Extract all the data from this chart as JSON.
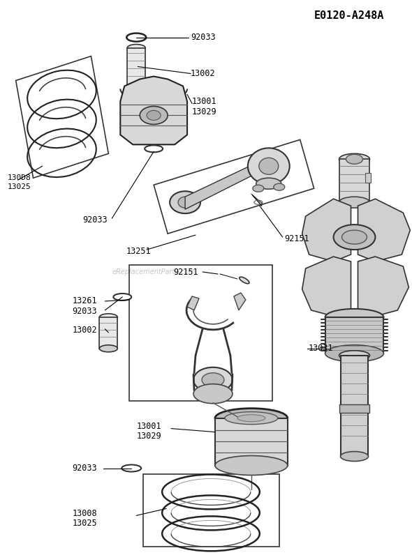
{
  "title": "E0120-A248A",
  "bg_color": "#ffffff",
  "watermark": "eReplacementParts.com",
  "fig_w": 5.9,
  "fig_h": 7.96,
  "dpi": 100
}
